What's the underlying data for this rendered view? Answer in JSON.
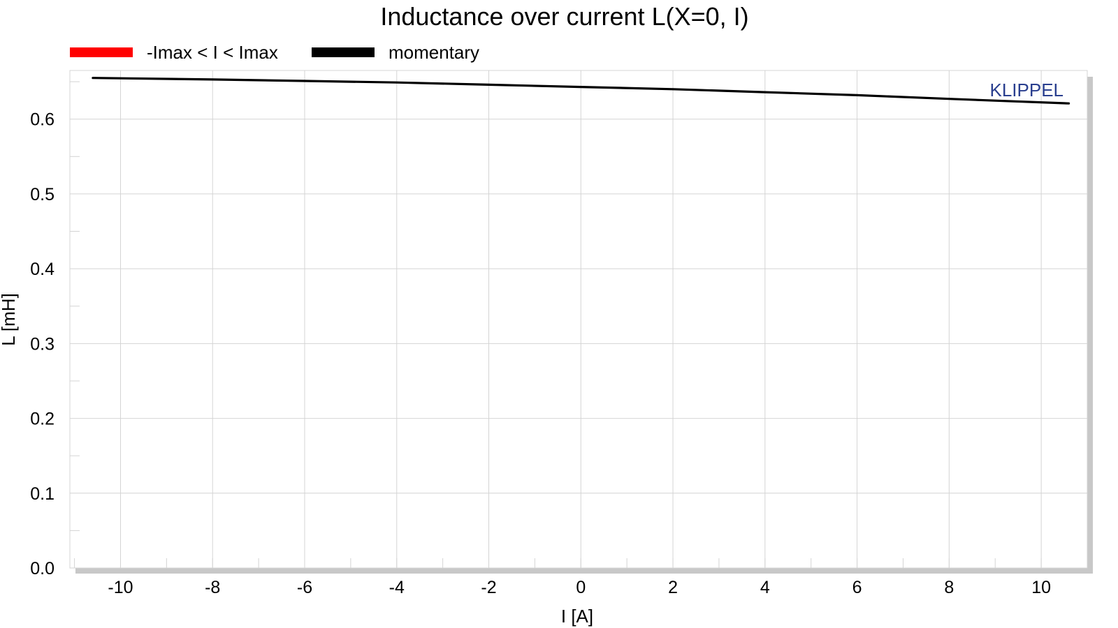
{
  "colors": {
    "grid": "#d4d4d4",
    "series_limits": "#ff0000",
    "series_momentary": "#000000",
    "brand": "#2a3f8f",
    "frame_shadow": "#c8c8c8"
  },
  "brand": "KLIPPEL",
  "chart_data": {
    "type": "line",
    "title": "Inductance over current L(X=0, I)",
    "xlabel": "I [A]",
    "ylabel": "L [mH]",
    "xlim": [
      -11.1,
      11.0
    ],
    "ylim": [
      0.0,
      0.665
    ],
    "x_ticks": [
      "-10",
      "-8",
      "-6",
      "-4",
      "-2",
      "0",
      "2",
      "4",
      "6",
      "8",
      "10"
    ],
    "y_ticks": [
      "0.0",
      "0.1",
      "0.2",
      "0.3",
      "0.4",
      "0.5",
      "0.6"
    ],
    "grid": true,
    "legend_position": "top-left",
    "legend": [
      "-Imax < I < Imax",
      "momentary"
    ],
    "series": [
      {
        "name": "-Imax < I < Imax",
        "color": "#ff0000",
        "x": [],
        "y": []
      },
      {
        "name": "momentary",
        "color": "#000000",
        "x": [
          -10.6,
          -8,
          -6,
          -4,
          -2,
          0,
          2,
          4,
          6,
          8,
          10.6
        ],
        "y": [
          0.655,
          0.653,
          0.651,
          0.649,
          0.646,
          0.643,
          0.64,
          0.636,
          0.632,
          0.627,
          0.621
        ]
      }
    ]
  }
}
